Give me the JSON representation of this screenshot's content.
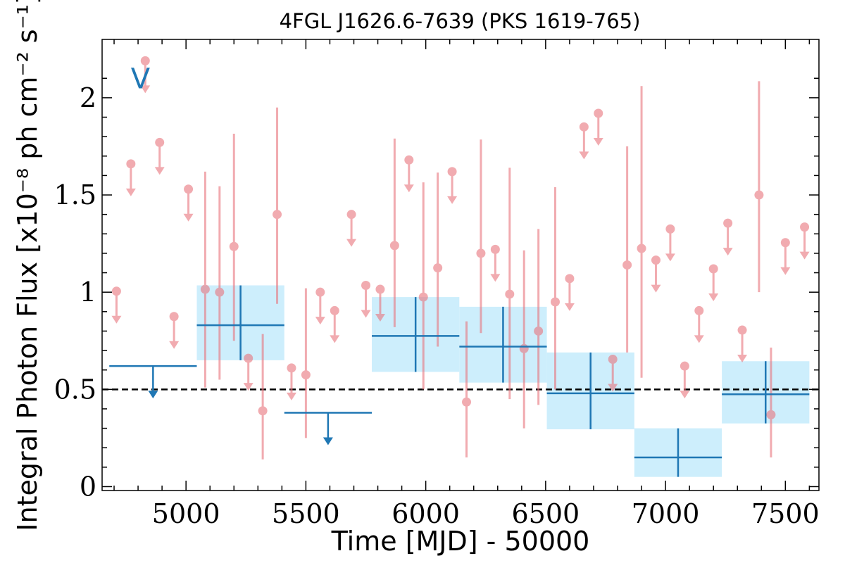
{
  "chart_data": {
    "type": "scatter",
    "title": "4FGL J1626.6-7639 (PKS 1619-765)",
    "xlabel": "Time [MJD] - 50000",
    "ylabel": "Integral Photon Flux [x10⁻⁸ ph cm⁻² s⁻¹]",
    "xlim": [
      4650,
      7640
    ],
    "ylim": [
      -0.02,
      2.3
    ],
    "x_ticks": [
      5000,
      5500,
      6000,
      6500,
      7000,
      7500
    ],
    "x_tick_labels": [
      "5000",
      "5500",
      "6000",
      "6500",
      "7000",
      "7500"
    ],
    "y_ticks": [
      0,
      0.5,
      1,
      1.5,
      2
    ],
    "y_tick_labels": [
      "0",
      "0.5",
      "1",
      "1.5",
      "2"
    ],
    "annotation": {
      "text": "V",
      "x": 4810,
      "y": 2.1,
      "color": "#1f77b4"
    },
    "reference_line": {
      "y": 0.5,
      "style": "dashed",
      "color": "#000000"
    },
    "colors": {
      "monthly": "#e8747c",
      "yearly": "#1f77b4",
      "box": "#cdeefc"
    },
    "series": [
      {
        "kind": "yearly_bins",
        "bins": [
          {
            "x0": 4680,
            "x1": 5045,
            "y": 0.62,
            "upper_limit": true
          },
          {
            "x0": 5045,
            "x1": 5410,
            "y": 0.83,
            "ylo": 0.65,
            "yhi": 1.035
          },
          {
            "x0": 5410,
            "x1": 5775,
            "y": 0.38,
            "upper_limit": true
          },
          {
            "x0": 5775,
            "x1": 6140,
            "y": 0.775,
            "ylo": 0.59,
            "yhi": 0.975
          },
          {
            "x0": 6140,
            "x1": 6505,
            "y": 0.72,
            "ylo": 0.535,
            "yhi": 0.925
          },
          {
            "x0": 6505,
            "x1": 6870,
            "y": 0.48,
            "ylo": 0.295,
            "yhi": 0.69
          },
          {
            "x0": 6870,
            "x1": 7235,
            "y": 0.15,
            "ylo": 0.05,
            "yhi": 0.3
          },
          {
            "x0": 7235,
            "x1": 7600,
            "y": 0.475,
            "ylo": 0.325,
            "yhi": 0.645
          }
        ]
      },
      {
        "kind": "monthly_points",
        "points": [
          {
            "x": 4710,
            "y": 1.005,
            "upper_limit": true
          },
          {
            "x": 4770,
            "y": 1.66,
            "upper_limit": true
          },
          {
            "x": 4830,
            "y": 2.19,
            "upper_limit": true
          },
          {
            "x": 4890,
            "y": 1.77,
            "upper_limit": true
          },
          {
            "x": 4950,
            "y": 0.875,
            "upper_limit": true
          },
          {
            "x": 5010,
            "y": 1.53,
            "upper_limit": true
          },
          {
            "x": 5080,
            "y": 1.015,
            "ylo": 0.51,
            "yhi": 1.62
          },
          {
            "x": 5140,
            "y": 1.0,
            "ylo": 0.55,
            "yhi": 1.545
          },
          {
            "x": 5200,
            "y": 1.235,
            "ylo": 0.75,
            "yhi": 1.815
          },
          {
            "x": 5260,
            "y": 0.66,
            "upper_limit": true
          },
          {
            "x": 5320,
            "y": 0.39,
            "ylo": 0.14,
            "yhi": 0.785
          },
          {
            "x": 5380,
            "y": 1.4,
            "ylo": 0.94,
            "yhi": 1.95
          },
          {
            "x": 5440,
            "y": 0.61,
            "upper_limit": true
          },
          {
            "x": 5500,
            "y": 0.575,
            "ylo": 0.25,
            "yhi": 1.02
          },
          {
            "x": 5560,
            "y": 1.0,
            "upper_limit": true
          },
          {
            "x": 5620,
            "y": 0.905,
            "upper_limit": true
          },
          {
            "x": 5690,
            "y": 1.4,
            "upper_limit": true
          },
          {
            "x": 5750,
            "y": 1.035,
            "upper_limit": true
          },
          {
            "x": 5810,
            "y": 1.015,
            "upper_limit": true
          },
          {
            "x": 5870,
            "y": 1.24,
            "ylo": 0.82,
            "yhi": 1.79
          },
          {
            "x": 5930,
            "y": 1.68,
            "upper_limit": true
          },
          {
            "x": 5990,
            "y": 0.975,
            "ylo": 0.5,
            "yhi": 1.565
          },
          {
            "x": 6050,
            "y": 1.125,
            "ylo": 0.72,
            "yhi": 1.615
          },
          {
            "x": 6110,
            "y": 1.62,
            "upper_limit": true
          },
          {
            "x": 6170,
            "y": 0.435,
            "ylo": 0.15,
            "yhi": 0.85
          },
          {
            "x": 6230,
            "y": 1.2,
            "ylo": 0.79,
            "yhi": 1.785
          },
          {
            "x": 6290,
            "y": 1.22,
            "upper_limit": true
          },
          {
            "x": 6350,
            "y": 0.99,
            "ylo": 0.45,
            "yhi": 1.64
          },
          {
            "x": 6410,
            "y": 0.71,
            "ylo": 0.3,
            "yhi": 1.215
          },
          {
            "x": 6470,
            "y": 0.8,
            "ylo": 0.42,
            "yhi": 1.325
          },
          {
            "x": 6540,
            "y": 0.95,
            "ylo": 0.5,
            "yhi": 1.54
          },
          {
            "x": 6600,
            "y": 1.07,
            "upper_limit": true
          },
          {
            "x": 6660,
            "y": 1.85,
            "upper_limit": true
          },
          {
            "x": 6720,
            "y": 1.92,
            "upper_limit": true
          },
          {
            "x": 6780,
            "y": 0.655,
            "upper_limit": true
          },
          {
            "x": 6840,
            "y": 1.14,
            "ylo": 0.69,
            "yhi": 1.75
          },
          {
            "x": 6900,
            "y": 1.225,
            "ylo": 0.56,
            "yhi": 2.06
          },
          {
            "x": 6960,
            "y": 1.165,
            "upper_limit": true
          },
          {
            "x": 7020,
            "y": 1.325,
            "upper_limit": true
          },
          {
            "x": 7080,
            "y": 0.62,
            "upper_limit": true
          },
          {
            "x": 7140,
            "y": 0.905,
            "upper_limit": true
          },
          {
            "x": 7200,
            "y": 1.12,
            "upper_limit": true
          },
          {
            "x": 7260,
            "y": 1.355,
            "upper_limit": true
          },
          {
            "x": 7320,
            "y": 0.805,
            "upper_limit": true
          },
          {
            "x": 7390,
            "y": 1.5,
            "ylo": 1.0,
            "yhi": 2.085
          },
          {
            "x": 7440,
            "y": 0.37,
            "ylo": 0.15,
            "yhi": 0.715
          },
          {
            "x": 7500,
            "y": 1.255,
            "upper_limit": true
          },
          {
            "x": 7580,
            "y": 1.335,
            "upper_limit": true
          }
        ]
      }
    ]
  }
}
